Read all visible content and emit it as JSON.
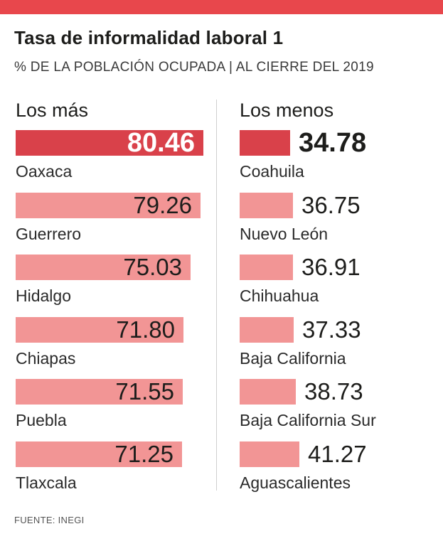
{
  "header": {
    "title": "Tasa de informalidad laboral 1",
    "subtitle": "% DE LA POBLACIÓN OCUPADA | AL CIERRE DEL 2019"
  },
  "columns": {
    "left_title": "Los más",
    "right_title": "Los menos"
  },
  "source": "FUENTE: INEGI",
  "colors": {
    "accent": "#e8474c",
    "highlight_bar": "#d9414a",
    "bar": "#f29595"
  },
  "chart_data": [
    {
      "type": "bar",
      "orientation": "horizontal",
      "title": "Los más",
      "categories": [
        "Oaxaca",
        "Guerrero",
        "Hidalgo",
        "Chiapas",
        "Puebla",
        "Tlaxcala"
      ],
      "values": [
        80.46,
        79.26,
        75.03,
        71.8,
        71.55,
        71.25
      ],
      "labels": [
        "80.46",
        "79.26",
        "75.03",
        "71.80",
        "71.55",
        "71.25"
      ],
      "highlight_index": 0
    },
    {
      "type": "bar",
      "orientation": "horizontal",
      "title": "Los menos",
      "categories": [
        "Coahuila",
        "Nuevo León",
        "Chihuahua",
        "Baja California",
        "Baja California Sur",
        "Aguascalientes"
      ],
      "values": [
        34.78,
        36.75,
        36.91,
        37.33,
        38.73,
        41.27
      ],
      "labels": [
        "34.78",
        "36.75",
        "36.91",
        "37.33",
        "38.73",
        "41.27"
      ],
      "highlight_index": 0
    }
  ]
}
